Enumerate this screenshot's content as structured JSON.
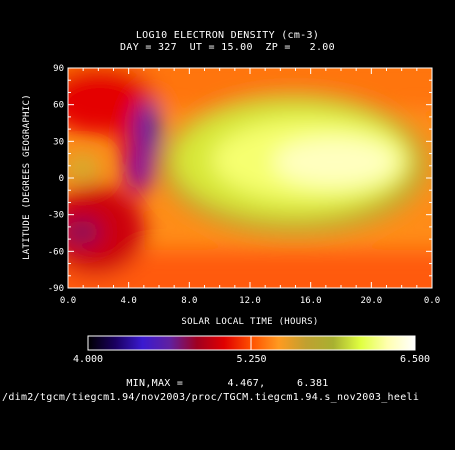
{
  "chart_data": {
    "type": "heatmap",
    "title": "LOG10 ELECTRON DENSITY (cm-3)",
    "subtitle": "DAY = 327  UT = 15.00  ZP =   2.00",
    "xlabel": "SOLAR LOCAL TIME (HOURS)",
    "ylabel": "LATITUDE (DEGREES GEOGRAPHIC)",
    "xlim": [
      0,
      24
    ],
    "ylim": [
      -90,
      90
    ],
    "xticks": [
      "0.0",
      "4.0",
      "8.0",
      "12.0",
      "16.0",
      "20.0",
      "0.0"
    ],
    "yticks": [
      "90",
      "60",
      "30",
      "0",
      "-30",
      "-60",
      "-90"
    ],
    "colorbar": {
      "min": 4.0,
      "max": 6.5,
      "ticks": [
        "4.000",
        "5.250",
        "6.500"
      ],
      "colors": [
        "#000000",
        "#1a0060",
        "#3a1ad0",
        "#6020a0",
        "#a00020",
        "#e00000",
        "#ff5000",
        "#ff9a20",
        "#c0a030",
        "#a8b030",
        "#e0ff40",
        "#ffffb0",
        "#ffffff"
      ]
    },
    "minmax_label": "MIN,MAX =       4.467,     6.381",
    "z_min": 4.467,
    "z_max": 6.381,
    "grid": false
  },
  "footer_path": "/dim2/tgcm/tiegcm1.94/nov2003/proc/TGCM.tiegcm1.94.s_nov2003_heeli"
}
